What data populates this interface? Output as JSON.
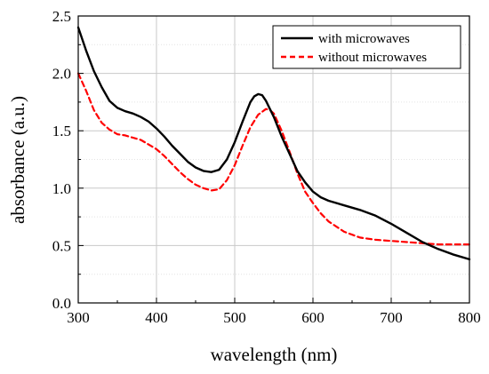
{
  "chart_data": {
    "type": "line",
    "title": "",
    "xlabel": "wavelength (nm)",
    "ylabel": "absorbance (a.u.)",
    "xlim": [
      300,
      800
    ],
    "ylim": [
      0.0,
      2.5
    ],
    "xticks": [
      "300",
      "400",
      "500",
      "600",
      "700",
      "800"
    ],
    "yticks": [
      "0.0",
      "0.5",
      "1.0",
      "1.5",
      "2.0",
      "2.5"
    ],
    "grid": true,
    "legend_position": "top-right",
    "series": [
      {
        "name": "with microwaves",
        "color": "#000000",
        "style": "solid",
        "x": [
          300,
          310,
          320,
          330,
          340,
          350,
          360,
          370,
          380,
          390,
          400,
          410,
          420,
          430,
          440,
          450,
          460,
          470,
          480,
          490,
          500,
          510,
          520,
          525,
          530,
          535,
          540,
          550,
          560,
          570,
          580,
          590,
          600,
          610,
          620,
          640,
          660,
          680,
          700,
          720,
          740,
          760,
          780,
          800
        ],
        "y": [
          2.4,
          2.2,
          2.02,
          1.88,
          1.76,
          1.7,
          1.67,
          1.65,
          1.62,
          1.58,
          1.52,
          1.45,
          1.37,
          1.3,
          1.23,
          1.18,
          1.15,
          1.14,
          1.16,
          1.25,
          1.4,
          1.58,
          1.75,
          1.8,
          1.82,
          1.81,
          1.76,
          1.62,
          1.45,
          1.3,
          1.15,
          1.05,
          0.97,
          0.92,
          0.89,
          0.85,
          0.81,
          0.76,
          0.69,
          0.61,
          0.53,
          0.47,
          0.42,
          0.38
        ]
      },
      {
        "name": "without microwaves",
        "color": "#ff0000",
        "style": "dashed",
        "x": [
          300,
          310,
          320,
          330,
          340,
          350,
          360,
          370,
          380,
          390,
          400,
          410,
          420,
          430,
          440,
          450,
          460,
          470,
          480,
          490,
          500,
          510,
          520,
          530,
          540,
          545,
          550,
          560,
          570,
          580,
          590,
          600,
          610,
          620,
          640,
          660,
          680,
          700,
          720,
          740,
          760,
          780,
          800
        ],
        "y": [
          2.0,
          1.85,
          1.68,
          1.57,
          1.51,
          1.47,
          1.46,
          1.44,
          1.42,
          1.38,
          1.34,
          1.28,
          1.21,
          1.14,
          1.08,
          1.03,
          1.0,
          0.98,
          0.99,
          1.07,
          1.2,
          1.37,
          1.53,
          1.64,
          1.69,
          1.68,
          1.65,
          1.5,
          1.32,
          1.13,
          0.97,
          0.87,
          0.78,
          0.71,
          0.62,
          0.57,
          0.55,
          0.54,
          0.53,
          0.52,
          0.51,
          0.51,
          0.51
        ]
      }
    ]
  }
}
